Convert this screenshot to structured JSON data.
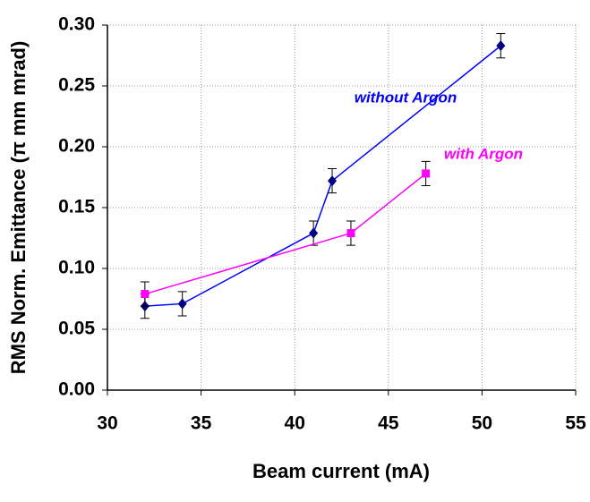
{
  "chart_data": {
    "type": "line",
    "x_label": "Beam current (mA)",
    "y_label": "RMS Norm. Emittance (π mm mrad)",
    "xlim": [
      30,
      55
    ],
    "xticks": [
      30,
      35,
      40,
      45,
      50,
      55
    ],
    "ylim": [
      0,
      0.3
    ],
    "yticks": [
      {
        "value": 0,
        "label": "0.00"
      },
      {
        "value": 0.05,
        "label": "0.05"
      },
      {
        "value": 0.1,
        "label": "0.10"
      },
      {
        "value": 0.15,
        "label": "0.15"
      },
      {
        "value": 0.2,
        "label": "0.20"
      },
      {
        "value": 0.25,
        "label": "0.25"
      },
      {
        "value": 0.3,
        "label": "0.30"
      }
    ],
    "grid": true,
    "series": [
      {
        "name": "without Argon",
        "color": "#0000ff",
        "marker_color": "#000080",
        "marker": "diamond",
        "x": [
          32,
          34,
          41,
          42,
          51
        ],
        "values": [
          0.069,
          0.071,
          0.129,
          0.172,
          0.283
        ],
        "errors": [
          0.01,
          0.01,
          0.01,
          0.01,
          0.01
        ]
      },
      {
        "name": "with Argon",
        "color": "#ff00ff",
        "marker_color": "#ff00ff",
        "marker": "square",
        "x": [
          32,
          43,
          47
        ],
        "values": [
          0.079,
          0.129,
          0.178
        ],
        "errors": [
          0.01,
          0.01,
          0.01
        ]
      }
    ]
  }
}
